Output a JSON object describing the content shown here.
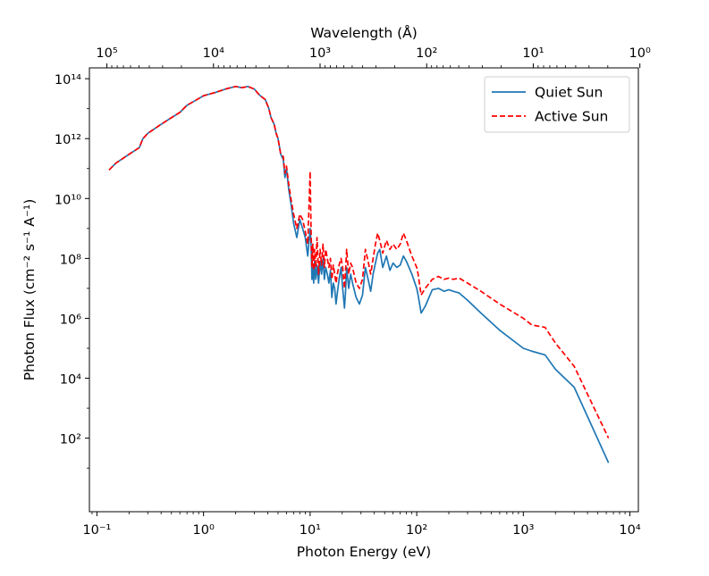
{
  "chart_data": {
    "type": "line",
    "title": "",
    "xlabel": "Photon Energy (eV)",
    "ylabel": "Photon Flux (cm⁻² s⁻¹ A⁻¹)",
    "top_xlabel": "Wavelength (Å)",
    "xscale": "log",
    "yscale": "log",
    "xlim": [
      0.085,
      12000
    ],
    "ylim": [
      0.35,
      230000000000000.0
    ],
    "x_ticks": [
      {
        "value": 0.1,
        "label": "10⁻¹"
      },
      {
        "value": 1,
        "label": "10⁰"
      },
      {
        "value": 10,
        "label": "10¹"
      },
      {
        "value": 100,
        "label": "10²"
      },
      {
        "value": 1000,
        "label": "10³"
      },
      {
        "value": 10000,
        "label": "10⁴"
      }
    ],
    "y_ticks": [
      {
        "value": 100,
        "label": "10²"
      },
      {
        "value": 10000,
        "label": "10⁴"
      },
      {
        "value": 1000000,
        "label": "10⁶"
      },
      {
        "value": 100000000,
        "label": "10⁸"
      },
      {
        "value": 10000000000,
        "label": "10¹⁰"
      },
      {
        "value": 1000000000000,
        "label": "10¹²"
      },
      {
        "value": 100000000000000,
        "label": "10¹⁴"
      }
    ],
    "top_ticks": [
      {
        "wavelength": 100000,
        "label": "10⁵"
      },
      {
        "wavelength": 10000,
        "label": "10⁴"
      },
      {
        "wavelength": 1000,
        "label": "10³"
      },
      {
        "wavelength": 100,
        "label": "10²"
      },
      {
        "wavelength": 10,
        "label": "10¹"
      },
      {
        "wavelength": 1,
        "label": "10⁰"
      }
    ],
    "legend_position": "upper-right",
    "series": [
      {
        "name": "Quiet Sun",
        "color": "#1f77b4",
        "style": "solid",
        "x": [
          0.13,
          0.15,
          0.2,
          0.25,
          0.27,
          0.3,
          0.4,
          0.5,
          0.6,
          0.7,
          0.8,
          1.0,
          1.3,
          1.6,
          2.0,
          2.3,
          2.6,
          3.0,
          3.3,
          3.5,
          3.8,
          4.1,
          4.3,
          4.6,
          4.8,
          5.0,
          5.3,
          5.6,
          5.8,
          6.0,
          6.3,
          6.6,
          7.0,
          7.5,
          8.0,
          8.5,
          9.0,
          9.5,
          10.0,
          10.2,
          10.4,
          10.6,
          10.8,
          11.0,
          11.3,
          11.6,
          12.0,
          12.4,
          12.8,
          13.2,
          13.6,
          14.0,
          14.5,
          15.0,
          15.5,
          16.0,
          16.5,
          17.0,
          17.5,
          18.0,
          18.7,
          19.5,
          20.2,
          21.0,
          21.5,
          22.0,
          23.0,
          24.0,
          25.0,
          27.0,
          29.0,
          31.0,
          33.0,
          35.0,
          37.0,
          39.0,
          41.0,
          43.0,
          45.0,
          48.0,
          52.0,
          56.0,
          60.0,
          65.0,
          70.0,
          75.0,
          80.0,
          90.0,
          100.0,
          103.0,
          110.0,
          120.0,
          140.0,
          160.0,
          180.0,
          200.0,
          220.0,
          250.0,
          300.0,
          400.0,
          600.0,
          1000.0,
          1200.0,
          1600.0,
          2000.0,
          3000.0,
          6300.0
        ],
        "y": [
          90000000000.0,
          150000000000.0,
          300000000000.0,
          500000000000.0,
          1000000000000.0,
          1500000000000.0,
          3000000000000.0,
          5000000000000.0,
          7500000000000.0,
          13000000000000.0,
          17000000000000.0,
          27000000000000.0,
          35000000000000.0,
          45000000000000.0,
          55000000000000.0,
          50000000000000.0,
          55000000000000.0,
          45000000000000.0,
          30000000000000.0,
          25000000000000.0,
          20000000000000.0,
          10000000000000.0,
          5000000000000.0,
          3000000000000.0,
          1500000000000.0,
          1000000000000.0,
          300000000000.0,
          200000000000.0,
          50000000000.0,
          100000000000.0,
          20000000000.0,
          7000000000.0,
          1500000000.0,
          500000000.0,
          2000000000.0,
          1000000000.0,
          500000000.0,
          120000000.0,
          1000000000.0,
          300000000.0,
          20000000.0,
          50000000.0,
          15000000.0,
          80000000.0,
          20000000.0,
          60000000.0,
          15000000.0,
          80000000.0,
          30000000.0,
          100000000.0,
          20000000.0,
          50000000.0,
          30000000.0,
          15000000.0,
          40000000.0,
          5000000.0,
          15000000.0,
          10000000.0,
          3000000.0,
          7000000.0,
          20000000.0,
          50000000.0,
          10000000.0,
          2200000.0,
          8000000.0,
          50000000.0,
          10000000.0,
          30000000.0,
          15000000.0,
          5000000.0,
          3000000.0,
          6000000.0,
          50000000.0,
          20000000.0,
          8000000.0,
          30000000.0,
          70000000.0,
          150000000.0,
          200000000.0,
          50000000.0,
          120000000.0,
          40000000.0,
          70000000.0,
          50000000.0,
          60000000.0,
          120000000.0,
          80000000.0,
          30000000.0,
          10000000.0,
          6000000.0,
          1500000.0,
          2500000.0,
          9000000.0,
          10000000.0,
          8000000.0,
          9000000.0,
          8000000.0,
          7000000.0,
          4000000.0,
          1500000.0,
          400000.0,
          100000.0,
          80000.0,
          60000.0,
          20000.0,
          5000.0,
          15
        ]
      },
      {
        "name": "Active Sun",
        "color": "#ff0000",
        "style": "dashed",
        "x": [
          0.13,
          0.15,
          0.2,
          0.25,
          0.27,
          0.3,
          0.4,
          0.5,
          0.6,
          0.7,
          0.8,
          1.0,
          1.3,
          1.6,
          2.0,
          2.3,
          2.6,
          3.0,
          3.3,
          3.5,
          3.8,
          4.1,
          4.3,
          4.6,
          4.8,
          5.0,
          5.3,
          5.6,
          5.8,
          6.0,
          6.3,
          6.6,
          7.0,
          7.5,
          8.0,
          8.5,
          9.0,
          9.5,
          10.0,
          10.2,
          10.4,
          10.6,
          10.8,
          11.0,
          11.3,
          11.6,
          12.0,
          12.4,
          12.8,
          13.2,
          13.6,
          14.0,
          14.5,
          15.0,
          15.5,
          16.0,
          16.5,
          17.0,
          17.5,
          18.0,
          18.7,
          19.5,
          20.2,
          21.0,
          21.5,
          22.0,
          23.0,
          24.0,
          25.0,
          27.0,
          29.0,
          31.0,
          33.0,
          35.0,
          37.0,
          39.0,
          41.0,
          43.0,
          45.0,
          48.0,
          52.0,
          56.0,
          60.0,
          65.0,
          70.0,
          75.0,
          80.0,
          90.0,
          100.0,
          103.0,
          110.0,
          120.0,
          140.0,
          160.0,
          180.0,
          200.0,
          220.0,
          250.0,
          300.0,
          400.0,
          600.0,
          1000.0,
          1200.0,
          1600.0,
          2000.0,
          3000.0,
          6300.0
        ],
        "y": [
          90000000000.0,
          150000000000.0,
          300000000000.0,
          500000000000.0,
          1000000000000.0,
          1500000000000.0,
          3000000000000.0,
          5000000000000.0,
          7500000000000.0,
          13000000000000.0,
          17000000000000.0,
          27000000000000.0,
          35000000000000.0,
          45000000000000.0,
          55000000000000.0,
          50000000000000.0,
          55000000000000.0,
          45000000000000.0,
          30000000000000.0,
          25000000000000.0,
          20000000000000.0,
          10000000000000.0,
          5000000000000.0,
          3000000000000.0,
          1500000000000.0,
          1000000000000.0,
          300000000000.0,
          250000000000.0,
          70000000000.0,
          120000000000.0,
          30000000000.0,
          10000000000.0,
          3000000000.0,
          1000000000.0,
          3000000000.0,
          2000000000.0,
          800000000.0,
          300000000.0,
          80000000000.0,
          1000000000.0,
          50000000.0,
          300000000.0,
          40000000.0,
          200000000.0,
          50000000.0,
          500000000.0,
          30000000.0,
          200000000.0,
          60000000.0,
          300000000.0,
          50000000.0,
          200000000.0,
          100000000.0,
          50000000.0,
          100000000.0,
          20000000.0,
          60000000.0,
          30000000.0,
          15000000.0,
          30000000.0,
          60000000.0,
          100000000.0,
          50000000.0,
          10000000.0,
          40000000.0,
          200000000.0,
          30000000.0,
          70000000.0,
          50000000.0,
          15000000.0,
          10000000.0,
          20000000.0,
          200000000.0,
          80000000.0,
          30000000.0,
          100000000.0,
          300000000.0,
          700000000.0,
          400000000.0,
          150000000.0,
          400000000.0,
          200000000.0,
          300000000.0,
          200000000.0,
          300000000.0,
          700000000.0,
          400000000.0,
          120000000.0,
          50000000.0,
          30000000.0,
          6000000.0,
          10000000.0,
          20000000.0,
          25000000.0,
          20000000.0,
          22000000.0,
          20000000.0,
          22000000.0,
          15000000.0,
          8000000.0,
          3000000.0,
          1000000.0,
          600000.0,
          500000.0,
          150000.0,
          25000.0,
          100
        ]
      }
    ]
  }
}
